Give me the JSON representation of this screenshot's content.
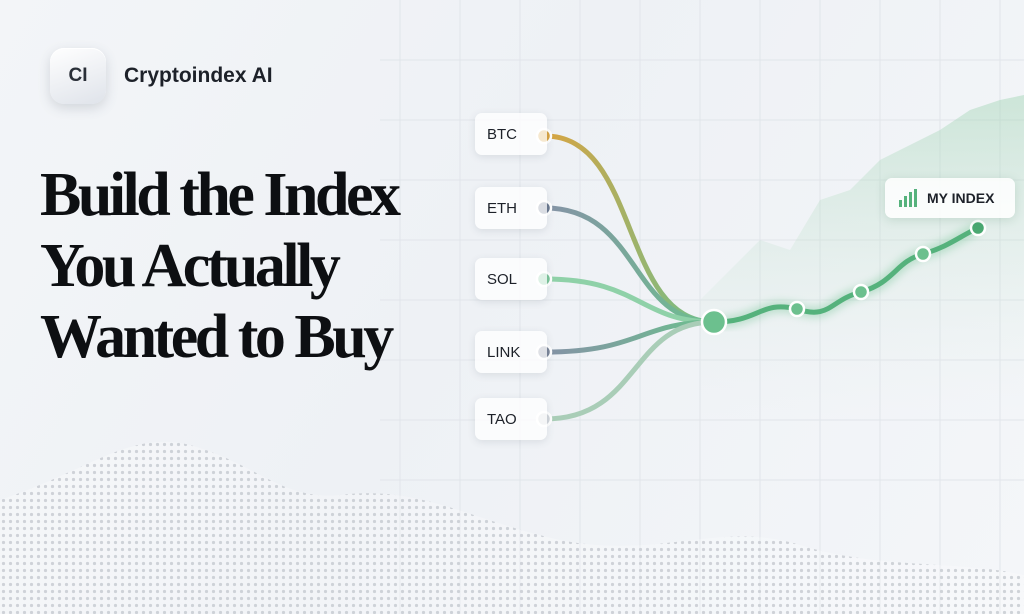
{
  "brand": {
    "badge": "CI",
    "name": "Cryptoindex AI"
  },
  "headline": {
    "lines": [
      "Build the Index",
      "You Actually",
      "Wanted to Buy"
    ]
  },
  "assets": [
    "BTC",
    "ETH",
    "SOL",
    "LINK",
    "TAO"
  ],
  "output": {
    "label": "MY INDEX"
  }
}
